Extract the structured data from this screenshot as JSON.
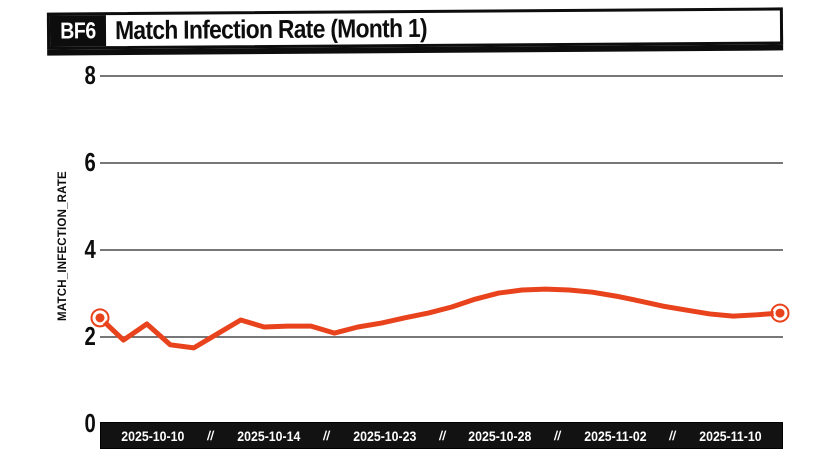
{
  "title_bar": {
    "badge": "BF6",
    "title": "Match Infection Rate (Month 1)"
  },
  "colors": {
    "line": "#E8431C",
    "grid": "#4A4A4A",
    "text": "#0D0D0D",
    "bar_background": "#121212",
    "bar_text": "#FFFFFF",
    "background": "#FFFFFF"
  },
  "chart_data": {
    "type": "line",
    "title": "Match Infection Rate (Month 1)",
    "xlabel": "",
    "ylabel": "MATCH_INFECTION_RATE",
    "ylim": [
      0,
      8.8
    ],
    "y_ticks": [
      0,
      2,
      4,
      6,
      8
    ],
    "grid": "horizontal gridlines at y = 2, 4, 6, 8",
    "legend": "none",
    "x_tick_labels": [
      "2025-10-10",
      "2025-10-14",
      "2025-10-23",
      "2025-10-28",
      "2025-11-02",
      "2025-11-10"
    ],
    "x_tick_separator": "//",
    "series": [
      {
        "name": "match_infection_rate",
        "color": "#E8431C",
        "endpoint_markers": "ring-dot on first and last point",
        "values": [
          2.44,
          1.93,
          2.3,
          1.82,
          1.75,
          2.07,
          2.39,
          2.23,
          2.25,
          2.25,
          2.09,
          2.23,
          2.32,
          2.44,
          2.55,
          2.69,
          2.87,
          3.01,
          3.08,
          3.1,
          3.08,
          3.03,
          2.94,
          2.83,
          2.71,
          2.62,
          2.53,
          2.48,
          2.51,
          2.55
        ]
      }
    ]
  }
}
